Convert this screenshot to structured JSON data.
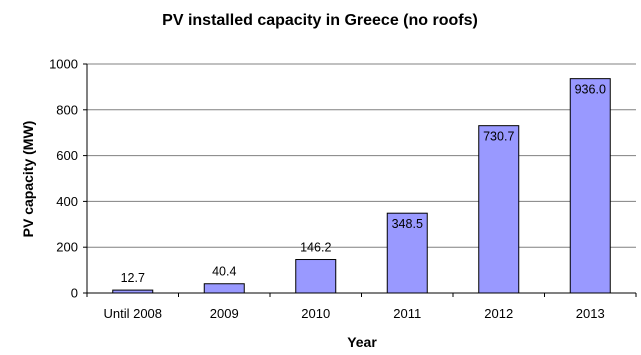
{
  "chart_data": {
    "type": "bar",
    "title": "PV installed capacity in Greece (no roofs)",
    "xlabel": "Year",
    "ylabel": "PV capacity (MW)",
    "categories": [
      "Until 2008",
      "2009",
      "2010",
      "2011",
      "2012",
      "2013"
    ],
    "values": [
      12.7,
      40.4,
      146.2,
      348.5,
      730.7,
      936.0
    ],
    "data_labels": [
      "12.7",
      "40.4",
      "146.2",
      "348.5",
      "730.7",
      "936.0"
    ],
    "ylim": [
      0,
      1000
    ],
    "yticks": [
      0,
      200,
      400,
      600,
      800,
      1000
    ],
    "ytick_labels": [
      "0",
      "200",
      "400",
      "600",
      "800",
      "1000"
    ],
    "grid": true,
    "legend": false,
    "bar_color": "#9999ff",
    "bar_edge_color": "#000000",
    "gridline_color": "#808080"
  }
}
